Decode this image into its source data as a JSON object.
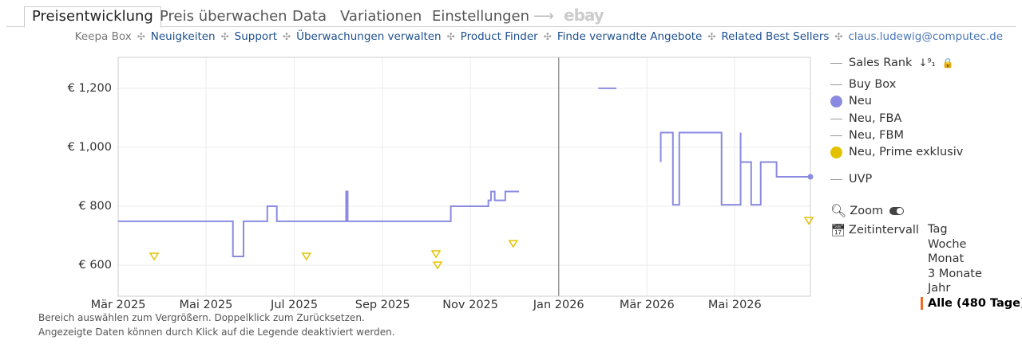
{
  "tabs": [
    "Preisentwicklung",
    "Preis überwachen",
    "Data",
    "Variationen",
    "Einstellungen",
    "ebay"
  ],
  "nav": {
    "label": "Keepa Box",
    "links": [
      "Neuigkeiten",
      "Support",
      "Überwachungen verwalten",
      "Product Finder",
      "Finde verwandte Angebote",
      "Related Best Sellers"
    ],
    "user": "claus.ludewig@computec.de"
  },
  "chart_data": {
    "type": "line",
    "xlim": [
      2025.167,
      2026.476
    ],
    "ylim": [
      495,
      1305
    ],
    "xticks": [
      {
        "value": 2025.167,
        "label": "Mär 2025"
      },
      {
        "value": 2025.333,
        "label": "Mai 2025"
      },
      {
        "value": 2025.5,
        "label": "Jul 2025"
      },
      {
        "value": 2025.667,
        "label": "Sep 2025"
      },
      {
        "value": 2025.833,
        "label": "Nov 2025"
      },
      {
        "value": 2026.0,
        "label": "Jan 2026"
      },
      {
        "value": 2026.167,
        "label": "Mär 2026"
      },
      {
        "value": 2026.333,
        "label": "Mai 2026"
      }
    ],
    "yticks": [
      {
        "value": 600,
        "label": "€ 600"
      },
      {
        "value": 800,
        "label": "€ 800"
      },
      {
        "value": 1000,
        "label": "€ 1,000"
      },
      {
        "value": 1200,
        "label": "€ 1,200"
      }
    ],
    "grid": true,
    "series": [
      {
        "name": "Neu",
        "color": "#8a8ae0",
        "x": [
          2025.167,
          2025.384,
          2025.384,
          2025.404,
          2025.404,
          2025.449,
          2025.449,
          2025.467,
          2025.467,
          2025.598,
          2025.598,
          2025.601,
          2025.601,
          2025.796,
          2025.796,
          2025.867,
          2025.867,
          2025.872,
          2025.872,
          2025.879,
          2025.879,
          2025.899,
          2025.899,
          2025.925,
          null,
          2026.075,
          2026.109,
          null,
          2026.193,
          2026.193,
          2026.216,
          2026.216,
          2026.228,
          2026.228,
          2026.308,
          2026.308,
          2026.344,
          2026.344,
          2026.344,
          2026.364,
          2026.364,
          2026.382,
          2026.382,
          2026.412,
          2026.412,
          2026.476
        ],
        "values": [
          749,
          749,
          630,
          630,
          749,
          749,
          800,
          800,
          749,
          749,
          850,
          850,
          749,
          749,
          800,
          800,
          820,
          820,
          850,
          850,
          820,
          820,
          850,
          850,
          null,
          1200,
          1200,
          null,
          950,
          1050,
          1050,
          805,
          805,
          1050,
          1050,
          805,
          805,
          1050,
          950,
          950,
          805,
          805,
          950,
          950,
          900,
          900
        ]
      },
      {
        "name": "Neu, Prime exklusiv",
        "color": "#e3c300",
        "marker": "triangle-down",
        "x": [
          2025.235,
          2025.523,
          2025.768,
          2025.771,
          2025.914,
          2026.473
        ],
        "values": [
          630,
          630,
          638,
          600,
          673,
          751
        ]
      }
    ]
  },
  "legend": {
    "sales_rank": "Sales Rank",
    "buy_box": "Buy Box",
    "fba": "Neu, FBA",
    "fbm": "Neu, FBM",
    "uvp": "UVP"
  },
  "controls": {
    "zoom": "Zoom",
    "interval_label": "Zeitintervall",
    "intervals": [
      "Tag",
      "Woche",
      "Monat",
      "3 Monate",
      "Jahr",
      "Alle (480 Tage)"
    ],
    "selected": 5
  },
  "footnotes": [
    "Bereich auswählen zum Vergrößern. Doppelklick zum Zurücksetzen.",
    "Angezeigte Daten können durch Klick auf die Legende deaktiviert werden."
  ]
}
